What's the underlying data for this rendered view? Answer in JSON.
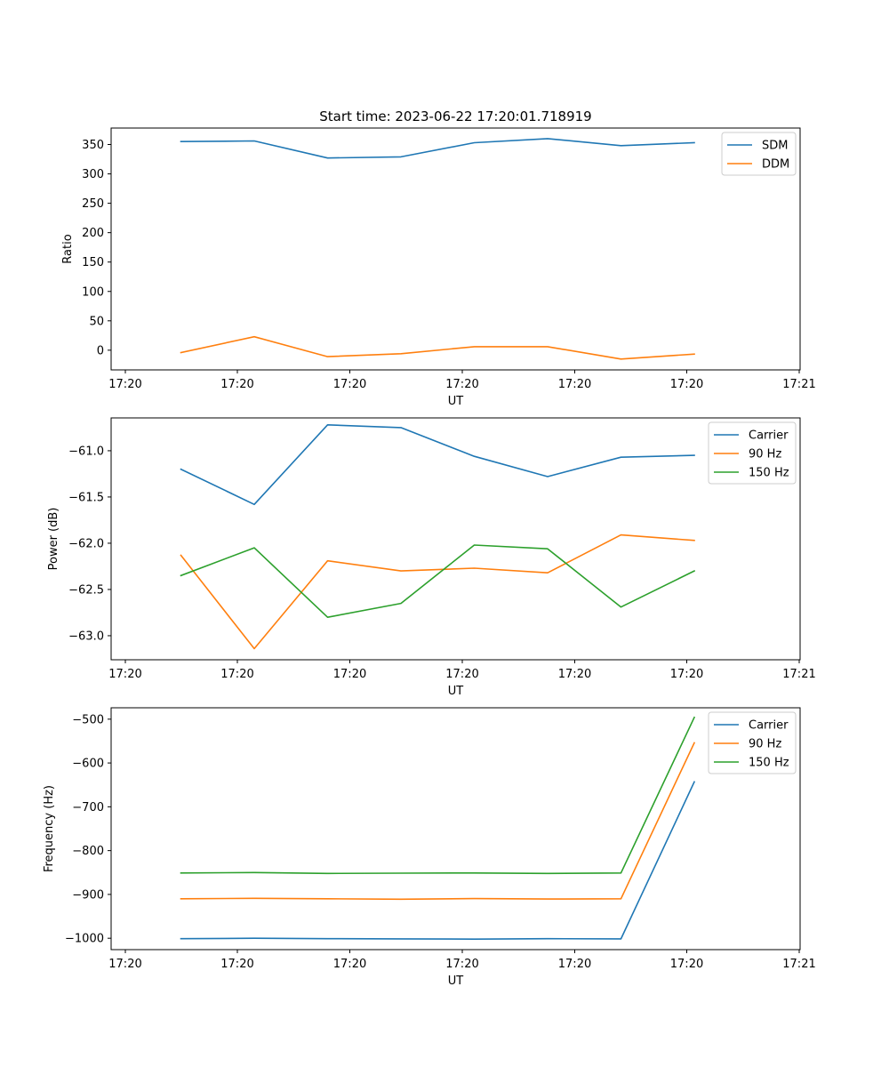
{
  "title": "Start time: 2023-06-22 17:20:01.718919",
  "chart_data": [
    {
      "type": "line",
      "title": "Start time: 2023-06-22 17:20:01.718919",
      "xlabel": "UT",
      "ylabel": "Ratio",
      "xtick_labels": [
        "17:20",
        "17:20",
        "17:20",
        "17:20",
        "17:20",
        "17:20",
        "17:20",
        "17:21"
      ],
      "yticks": [
        0,
        50,
        100,
        150,
        200,
        250,
        300,
        350
      ],
      "ylim": [
        -33.5,
        378
      ],
      "legend_position": "top-right",
      "grid": false,
      "series": [
        {
          "name": "SDM",
          "color": "#1f77b4",
          "values": [
            355,
            356,
            327,
            329,
            353,
            360,
            348,
            353
          ]
        },
        {
          "name": "DDM",
          "color": "#ff7f0e",
          "values": [
            -4,
            23,
            -11,
            -6,
            6,
            6,
            -15,
            -6.5
          ]
        }
      ]
    },
    {
      "type": "line",
      "xlabel": "UT",
      "ylabel": "Power (dB)",
      "xtick_labels": [
        "17:20",
        "17:20",
        "17:20",
        "17:20",
        "17:20",
        "17:20",
        "17:20",
        "17:21"
      ],
      "yticks": [
        -61.0,
        -61.5,
        -62.0,
        -62.5,
        -63.0
      ],
      "ytick_labels": [
        "−61.0",
        "−61.5",
        "−62.0",
        "−62.5",
        "−63.0"
      ],
      "ylim": [
        -63.26,
        -60.645
      ],
      "legend_position": "top-right",
      "grid": false,
      "series": [
        {
          "name": "Carrier",
          "color": "#1f77b4",
          "values": [
            -61.2,
            -61.58,
            -60.72,
            -60.75,
            -61.06,
            -61.28,
            -61.07,
            -61.05
          ]
        },
        {
          "name": "90 Hz",
          "color": "#ff7f0e",
          "values": [
            -62.13,
            -63.14,
            -62.19,
            -62.3,
            -62.27,
            -62.32,
            -61.91,
            -61.97
          ]
        },
        {
          "name": "150 Hz",
          "color": "#2ca02c",
          "values": [
            -62.35,
            -62.05,
            -62.8,
            -62.65,
            -62.02,
            -62.06,
            -62.69,
            -62.3
          ]
        }
      ]
    },
    {
      "type": "line",
      "xlabel": "UT",
      "ylabel": "Frequency (Hz)",
      "xtick_labels": [
        "17:20",
        "17:20",
        "17:20",
        "17:20",
        "17:20",
        "17:20",
        "17:20",
        "17:21"
      ],
      "yticks": [
        -500,
        -600,
        -700,
        -800,
        -900,
        -1000
      ],
      "ytick_labels": [
        "−500",
        "−600",
        "−700",
        "−800",
        "−900",
        "−1000"
      ],
      "ylim": [
        -1026,
        -474
      ],
      "legend_position": "top-right",
      "grid": false,
      "series": [
        {
          "name": "Carrier",
          "color": "#1f77b4",
          "values": [
            -1001,
            -1000,
            -1001,
            -1001.5,
            -1002,
            -1001,
            -1001.5,
            -643
          ]
        },
        {
          "name": "90 Hz",
          "color": "#ff7f0e",
          "values": [
            -910,
            -909,
            -910,
            -911,
            -909.5,
            -910.5,
            -910,
            -554
          ]
        },
        {
          "name": "150 Hz",
          "color": "#2ca02c",
          "values": [
            -851,
            -850,
            -852,
            -851.5,
            -851,
            -852,
            -851,
            -496
          ]
        }
      ]
    }
  ]
}
